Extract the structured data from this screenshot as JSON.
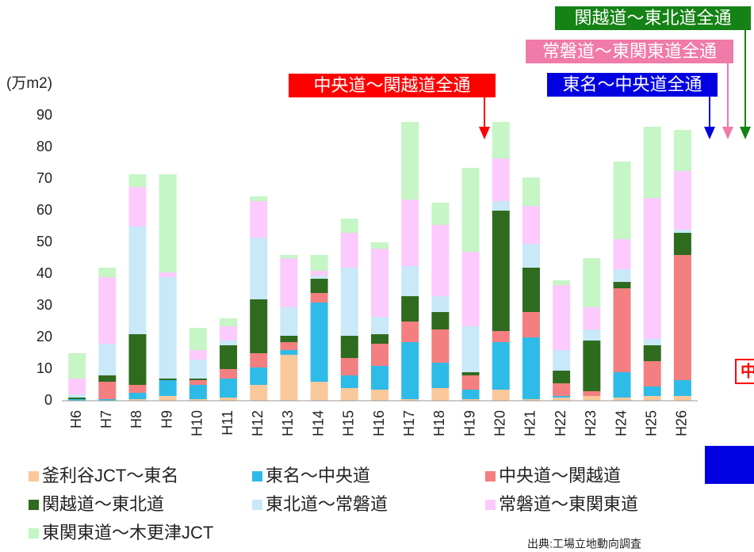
{
  "chart_data": {
    "type": "stacked_bar",
    "unit_label": "(万m2)",
    "source": "出典:工場立地動向調査",
    "categories": [
      "H6",
      "H7",
      "H8",
      "H9",
      "H10",
      "H11",
      "H12",
      "H13",
      "H14",
      "H15",
      "H16",
      "H17",
      "H18",
      "H19",
      "H20",
      "H21",
      "H22",
      "H23",
      "H24",
      "H25",
      "H26"
    ],
    "series": [
      {
        "name": "釜利谷JCT～東名",
        "color": "#f9c89b",
        "values": [
          0,
          0,
          0.5,
          1.5,
          0.5,
          1,
          5,
          14.5,
          6,
          4,
          3.5,
          0.5,
          4,
          0.5,
          3.5,
          0.5,
          1,
          1.5,
          1,
          1.5,
          1.5
        ]
      },
      {
        "name": "東名～中央道",
        "color": "#2ebbe8",
        "values": [
          0.5,
          0.5,
          2,
          5,
          4.5,
          6,
          5.5,
          1.5,
          25,
          4,
          7.5,
          18,
          8,
          3,
          15,
          19.5,
          0.5,
          0,
          8,
          3,
          5
        ]
      },
      {
        "name": "中央道～関越道",
        "color": "#f47f80",
        "values": [
          0,
          5.5,
          2.5,
          0,
          1.5,
          3,
          4.5,
          2.5,
          3,
          5.5,
          7,
          6.5,
          10.5,
          4.5,
          3.5,
          8,
          4,
          1.5,
          26.5,
          8,
          39.5
        ]
      },
      {
        "name": "関越道～東北道",
        "color": "#2f6b1e",
        "values": [
          0.5,
          2,
          16,
          0.5,
          0.5,
          7.5,
          17,
          2,
          4.5,
          7,
          3,
          8,
          5.5,
          1,
          38,
          14,
          4,
          16,
          2,
          5,
          7
        ]
      },
      {
        "name": "東北道～常磐道",
        "color": "#c9e8f8",
        "values": [
          1,
          10,
          34,
          32,
          6,
          1.5,
          19.5,
          9,
          1,
          21.5,
          5.5,
          9.5,
          5,
          14.5,
          3,
          7.5,
          6.5,
          3.5,
          4,
          2,
          1
        ]
      },
      {
        "name": "常磐道～東関東道",
        "color": "#fccafc",
        "values": [
          5,
          21,
          12.5,
          1.5,
          3,
          4.5,
          11.5,
          15.5,
          1.5,
          11,
          21.5,
          21,
          22.5,
          23.5,
          13.5,
          12,
          20.5,
          7,
          9.5,
          44.5,
          18.5
        ]
      },
      {
        "name": "東関東道～木更津JCT",
        "color": "#c6f5c6",
        "values": [
          8,
          3,
          4,
          31,
          7,
          2.5,
          1.5,
          1,
          5,
          4.5,
          2,
          24.5,
          7,
          26.5,
          11.5,
          9,
          1.5,
          15.5,
          24.5,
          22.5,
          13
        ]
      }
    ],
    "ylim": [
      0,
      90
    ],
    "yticks": [
      0,
      10,
      20,
      30,
      40,
      50,
      60,
      70,
      80,
      90
    ],
    "annotations": [
      {
        "text": "関越道～東北道全通",
        "color": "#148214"
      },
      {
        "text": "常磐道～東関東道全通",
        "color": "#f07aa8"
      },
      {
        "text": "東名～中央道全通",
        "color": "#0000e0"
      },
      {
        "text": "中央道～関越道全通",
        "color": "#ff0000"
      },
      {
        "text": "中",
        "color": "#ff0000"
      }
    ]
  }
}
